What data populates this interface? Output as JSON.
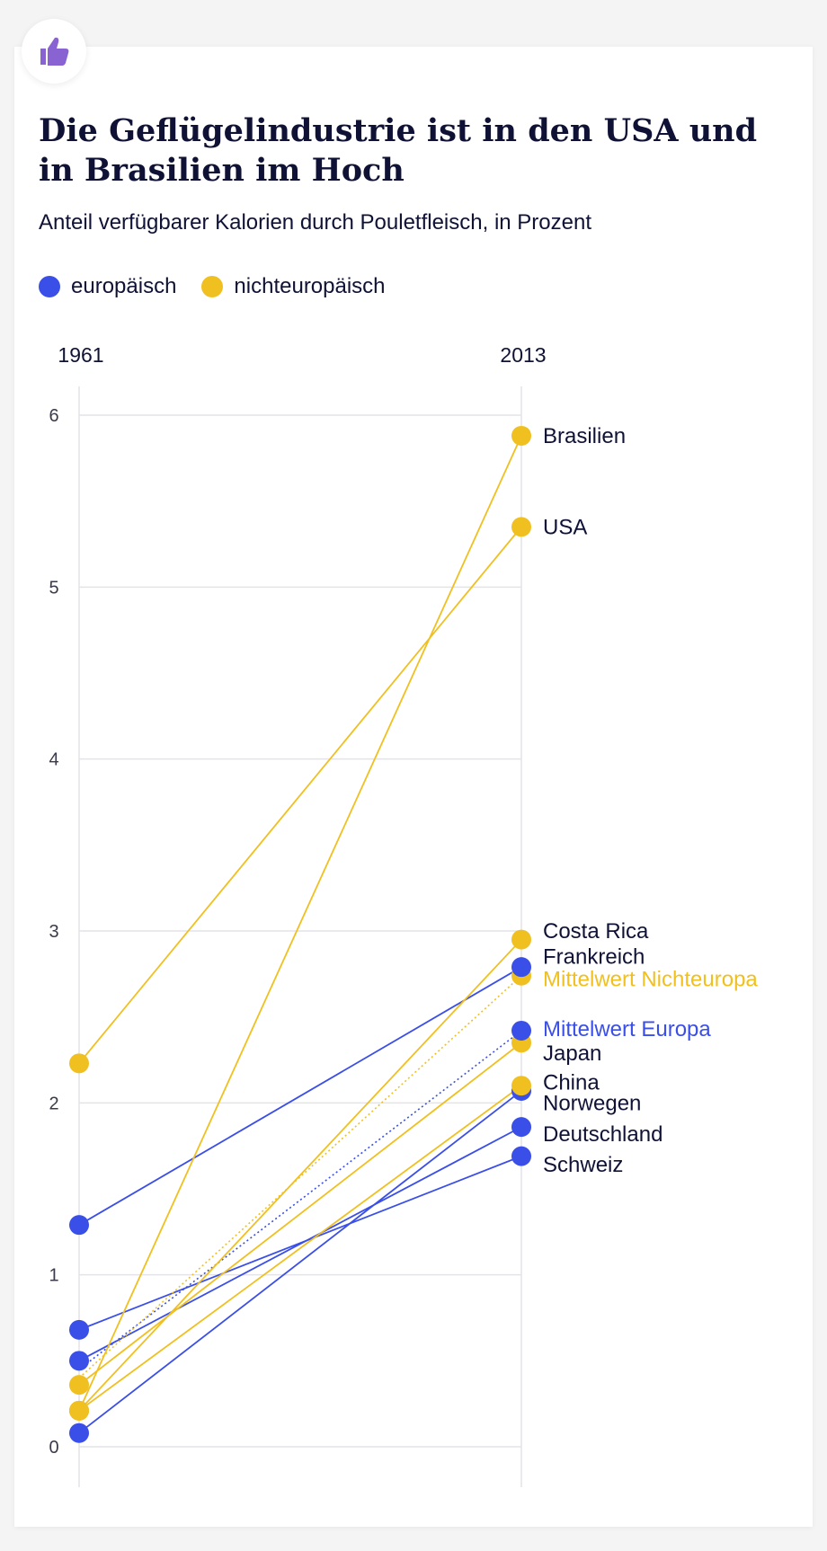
{
  "header": {
    "icon": "thumbs-up-icon",
    "title": "Die Geflügelindustrie ist in den USA und in Brasilien im Hoch",
    "subtitle": "Anteil verfügbarer Kalorien durch Pouletfleisch, in Prozent"
  },
  "legend": [
    {
      "label": "europäisch",
      "color": "#3a4ee8"
    },
    {
      "label": "nichteuropäisch",
      "color": "#f0c020"
    }
  ],
  "colors": {
    "european": "#3a4ee8",
    "noneuropean": "#f0c020",
    "text": "#0f1235"
  },
  "chart_data": {
    "type": "slope",
    "x": [
      "1961",
      "2013"
    ],
    "ylim": [
      0,
      6
    ],
    "yticks": [
      0,
      1,
      2,
      3,
      4,
      5,
      6
    ],
    "grid": true,
    "series": [
      {
        "name": "Brasilien",
        "group": "nichteuropäisch",
        "values": [
          0.21,
          5.88
        ]
      },
      {
        "name": "USA",
        "group": "nichteuropäisch",
        "values": [
          2.23,
          5.35
        ]
      },
      {
        "name": "Costa Rica",
        "group": "nichteuropäisch",
        "values": [
          0.21,
          2.95
        ]
      },
      {
        "name": "Frankreich",
        "group": "europäisch",
        "values": [
          1.29,
          2.79
        ]
      },
      {
        "name": "Mittelwert Nichteuropa",
        "group": "nichteuropäisch",
        "mean": true,
        "values": [
          0.4,
          2.74
        ]
      },
      {
        "name": "Mittelwert Europa",
        "group": "europäisch",
        "mean": true,
        "values": [
          0.45,
          2.42
        ]
      },
      {
        "name": "Japan",
        "group": "nichteuropäisch",
        "values": [
          0.36,
          2.35
        ]
      },
      {
        "name": "China",
        "group": "nichteuropäisch",
        "values": [
          0.21,
          2.1
        ]
      },
      {
        "name": "Norwegen",
        "group": "europäisch",
        "values": [
          0.08,
          2.07
        ]
      },
      {
        "name": "Deutschland",
        "group": "europäisch",
        "values": [
          0.5,
          1.86
        ]
      },
      {
        "name": "Schweiz",
        "group": "europäisch",
        "values": [
          0.68,
          1.69
        ]
      }
    ]
  }
}
